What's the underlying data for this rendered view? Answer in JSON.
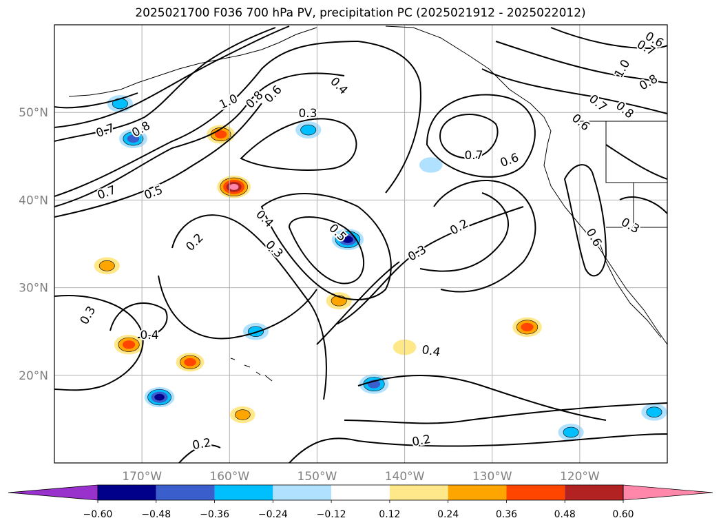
{
  "title": "2025021700 F036 700 hPa PV, precipitation PC (2025021912 - 2025022012)",
  "chart_data": {
    "type": "heatmap",
    "title": "2025021700 F036 700 hPa PV, precipitation PC (2025021912 - 2025022012)",
    "lon_range": [
      -180,
      -110
    ],
    "lat_range": [
      10,
      60
    ],
    "x_ticks": [
      -170,
      -160,
      -150,
      -140,
      -130,
      -120
    ],
    "x_tick_labels": [
      "170°W",
      "160°W",
      "150°W",
      "140°W",
      "130°W",
      "120°W"
    ],
    "y_ticks": [
      20,
      30,
      40,
      50
    ],
    "y_tick_labels": [
      "20°N",
      "30°N",
      "40°N",
      "50°N"
    ],
    "grid": true,
    "colorbar": {
      "levels": [
        -0.6,
        -0.48,
        -0.36,
        -0.24,
        -0.12,
        0.12,
        0.24,
        0.36,
        0.48,
        0.6
      ],
      "labels": [
        "−0.60",
        "−0.48",
        "−0.36",
        "−0.24",
        "−0.12",
        "0.12",
        "0.24",
        "0.36",
        "0.48",
        "0.60"
      ],
      "colors": [
        "#9932CC",
        "#00008B",
        "#3A5FCD",
        "#00BFFF",
        "#B0E2FF",
        "#FFFFFF",
        "#FFE88A",
        "#FFA500",
        "#FF4500",
        "#B22222",
        "#FF88AA"
      ],
      "extend": "both"
    },
    "contour_levels_labeled": [
      "1.0",
      "0.8",
      "0.7",
      "0.6",
      "0.5",
      "0.4",
      "0.3",
      "0.2"
    ],
    "shaded_features": [
      {
        "lon": -159.5,
        "lat": 41.5,
        "value": 0.62
      },
      {
        "lon": -161,
        "lat": 47.5,
        "value": 0.4
      },
      {
        "lon": -171.5,
        "lat": 23.5,
        "value": 0.45
      },
      {
        "lon": -164.5,
        "lat": 21.5,
        "value": 0.4
      },
      {
        "lon": -147.5,
        "lat": 28.5,
        "value": 0.3
      },
      {
        "lon": -126,
        "lat": 25.5,
        "value": 0.45
      },
      {
        "lon": -174,
        "lat": 32.5,
        "value": 0.3
      },
      {
        "lon": -158.5,
        "lat": 15.5,
        "value": 0.28
      },
      {
        "lon": -140,
        "lat": 23.2,
        "value": 0.2
      },
      {
        "lon": -171,
        "lat": 47,
        "value": -0.4
      },
      {
        "lon": -172.5,
        "lat": 51,
        "value": -0.3
      },
      {
        "lon": -146.5,
        "lat": 35.5,
        "value": -0.55
      },
      {
        "lon": -151,
        "lat": 48,
        "value": -0.3
      },
      {
        "lon": -143.5,
        "lat": 19,
        "value": -0.45
      },
      {
        "lon": -168,
        "lat": 17.5,
        "value": -0.48
      },
      {
        "lon": -121,
        "lat": 13.5,
        "value": -0.3
      },
      {
        "lon": -111.5,
        "lat": 15.8,
        "value": -0.3
      },
      {
        "lon": -157,
        "lat": 25,
        "value": -0.3
      },
      {
        "lon": -137,
        "lat": 44,
        "value": -0.2
      }
    ]
  }
}
